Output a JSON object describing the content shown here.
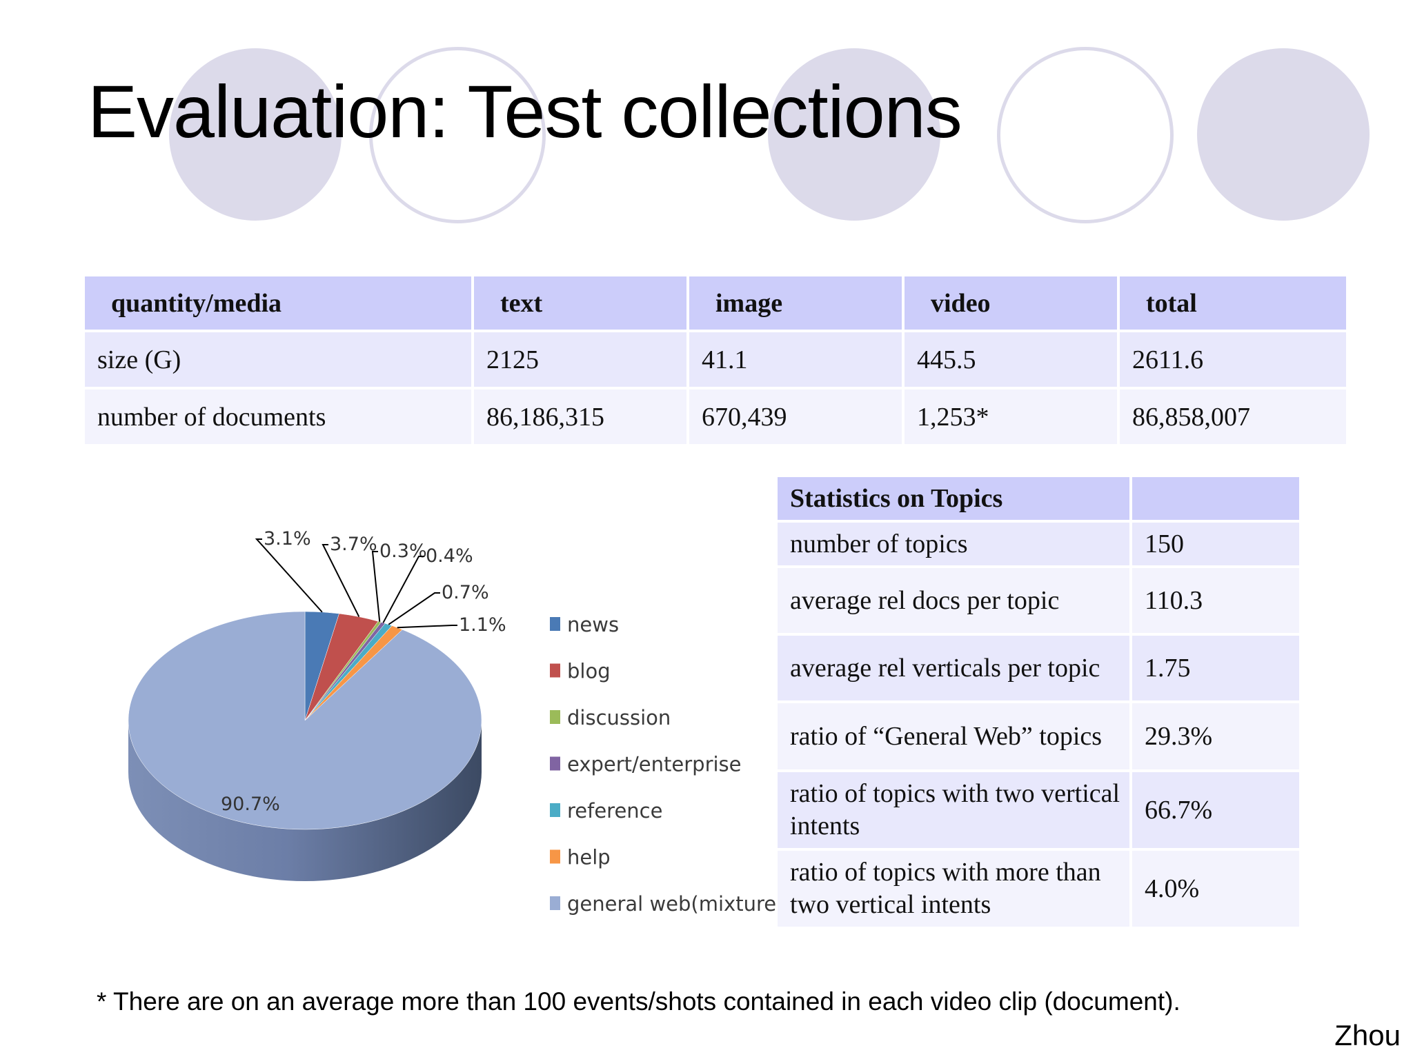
{
  "title": "Evaluation: Test collections",
  "media_table": {
    "headers": [
      "quantity/media",
      "text",
      "image",
      "video",
      "total"
    ],
    "rows": [
      [
        "size (G)",
        "2125",
        "41.1",
        "445.5",
        "2611.6"
      ],
      [
        "number of documents",
        "86,186,315",
        "670,439",
        "1,253*",
        "86,858,007"
      ]
    ]
  },
  "topics_table": {
    "header": "Statistics on Topics",
    "rows": [
      [
        "number of topics",
        "150"
      ],
      [
        "average rel docs per topic",
        "110.3"
      ],
      [
        "average rel verticals per topic",
        "1.75"
      ],
      [
        "ratio of “General Web” topics",
        "29.3%"
      ],
      [
        "ratio of topics with two vertical intents",
        "66.7%"
      ],
      [
        "ratio of topics with more than two vertical intents",
        "4.0%"
      ]
    ]
  },
  "chart_data": {
    "type": "pie",
    "categories": [
      "news",
      "blog",
      "discussion",
      "expert/enterprise",
      "reference",
      "help",
      "general web(mixture)"
    ],
    "values": [
      3.1,
      3.7,
      0.3,
      0.4,
      0.7,
      1.1,
      90.7
    ],
    "labels": [
      "3.1%",
      "3.7%",
      "0.3%",
      "0.4%",
      "0.7%",
      "1.1%",
      "90.7%"
    ],
    "colors": [
      "#4a7ab5",
      "#c0504d",
      "#9bbb59",
      "#8064a2",
      "#4bacc6",
      "#f79646",
      "#9aadd4"
    ],
    "legend": "right",
    "style": "3d"
  },
  "footnote": "* There are on an average more than 100 events/shots contained in each video clip (document).",
  "author": "Zhou"
}
